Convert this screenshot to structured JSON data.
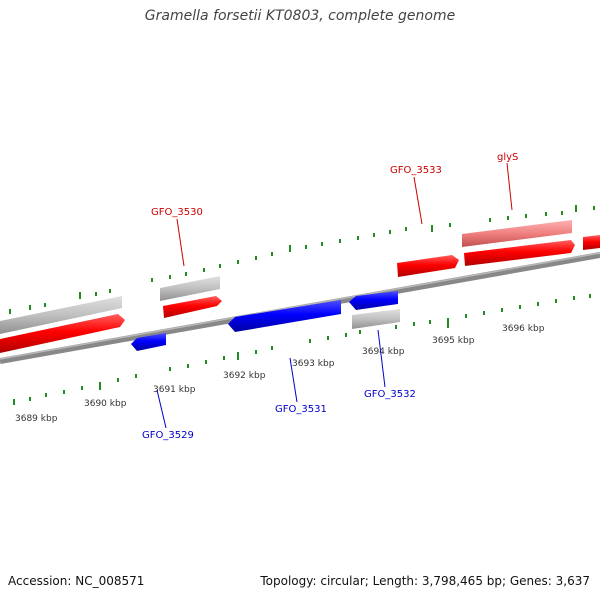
{
  "title": "Gramella forsetii KT0803, complete genome",
  "footer": {
    "accession": "Accession: NC_008571",
    "summary": "Topology: circular; Length: 3,798,465 bp; Genes: 3,637"
  },
  "scale_labels": [
    "3689 kbp",
    "3690 kbp",
    "3691 kbp",
    "3692 kbp",
    "3693 kbp",
    "3694 kbp",
    "3695 kbp",
    "3696 kbp"
  ],
  "gene_labels": {
    "GFO_3529": "GFO_3529",
    "GFO_3530": "GFO_3530",
    "GFO_3531": "GFO_3531",
    "GFO_3532": "GFO_3532",
    "GFO_3533": "GFO_3533",
    "glyS": "glyS"
  },
  "colors": {
    "forward_gene": "#ff0000",
    "reverse_gene": "#0000ff",
    "rna_or_pseudo": "#c0c0c0",
    "highlight_gene": "#f08080",
    "backbone": "#808080",
    "tick": "#228b22",
    "forward_label": "#cc0000",
    "reverse_label": "#0000cc"
  }
}
